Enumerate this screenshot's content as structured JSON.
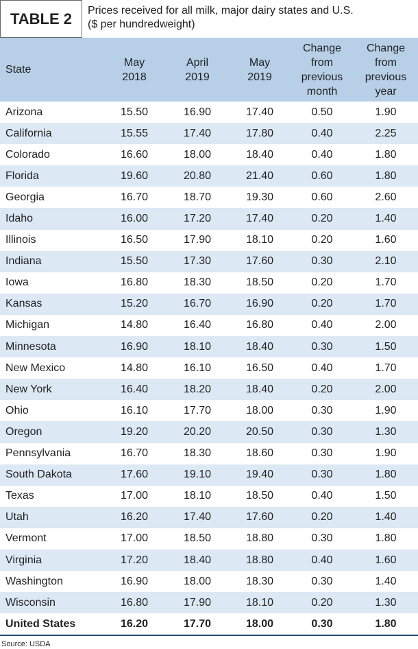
{
  "header": {
    "label": "TABLE 2",
    "caption": [
      "Prices received for all milk, major dairy states and U.S.",
      "($ per hundredweight)"
    ]
  },
  "table": {
    "columns": [
      [
        "State"
      ],
      [
        "May",
        "2018"
      ],
      [
        "April",
        "2019"
      ],
      [
        "May",
        "2019"
      ],
      [
        "Change",
        "from",
        "previous",
        "month"
      ],
      [
        "Change",
        "from",
        "previous",
        "year"
      ]
    ],
    "rows": [
      [
        "Arizona",
        "15.50",
        "16.90",
        "17.40",
        "0.50",
        "1.90"
      ],
      [
        "California",
        "15.55",
        "17.40",
        "17.80",
        "0.40",
        "2.25"
      ],
      [
        "Colorado",
        "16.60",
        "18.00",
        "18.40",
        "0.40",
        "1.80"
      ],
      [
        "Florida",
        "19.60",
        "20.80",
        "21.40",
        "0.60",
        "1.80"
      ],
      [
        "Georgia",
        "16.70",
        "18.70",
        "19.30",
        "0.60",
        "2.60"
      ],
      [
        "Idaho",
        "16.00",
        "17.20",
        "17.40",
        "0.20",
        "1.40"
      ],
      [
        "Illinois",
        "16.50",
        "17.90",
        "18.10",
        "0.20",
        "1.60"
      ],
      [
        "Indiana",
        "15.50",
        "17.30",
        "17.60",
        "0.30",
        "2.10"
      ],
      [
        "Iowa",
        "16.80",
        "18.30",
        "18.50",
        "0.20",
        "1.70"
      ],
      [
        "Kansas",
        "15.20",
        "16.70",
        "16.90",
        "0.20",
        "1.70"
      ],
      [
        "Michigan",
        "14.80",
        "16.40",
        "16.80",
        "0.40",
        "2.00"
      ],
      [
        "Minnesota",
        "16.90",
        "18.10",
        "18.40",
        "0.30",
        "1.50"
      ],
      [
        "New Mexico",
        "14.80",
        "16.10",
        "16.50",
        "0.40",
        "1.70"
      ],
      [
        "New York",
        "16.40",
        "18.20",
        "18.40",
        "0.20",
        "2.00"
      ],
      [
        "Ohio",
        "16.10",
        "17.70",
        "18.00",
        "0.30",
        "1.90"
      ],
      [
        "Oregon",
        "19.20",
        "20.20",
        "20.50",
        "0.30",
        "1.30"
      ],
      [
        "Pennsylvania",
        "16.70",
        "18.30",
        "18.60",
        "0.30",
        "1.90"
      ],
      [
        "South Dakota",
        "17.60",
        "19.10",
        "19.40",
        "0.30",
        "1.80"
      ],
      [
        "Texas",
        "17.00",
        "18.10",
        "18.50",
        "0.40",
        "1.50"
      ],
      [
        "Utah",
        "16.20",
        "17.40",
        "17.60",
        "0.20",
        "1.40"
      ],
      [
        "Vermont",
        "17.00",
        "18.50",
        "18.80",
        "0.30",
        "1.80"
      ],
      [
        "Virginia",
        "17.20",
        "18.40",
        "18.80",
        "0.40",
        "1.60"
      ],
      [
        "Washington",
        "16.90",
        "18.00",
        "18.30",
        "0.30",
        "1.40"
      ],
      [
        "Wisconsin",
        "16.80",
        "17.90",
        "18.10",
        "0.20",
        "1.30"
      ]
    ],
    "total": [
      "United States",
      "16.20",
      "17.70",
      "18.00",
      "0.30",
      "1.80"
    ]
  },
  "footer": {
    "source": "Source: USDA"
  }
}
